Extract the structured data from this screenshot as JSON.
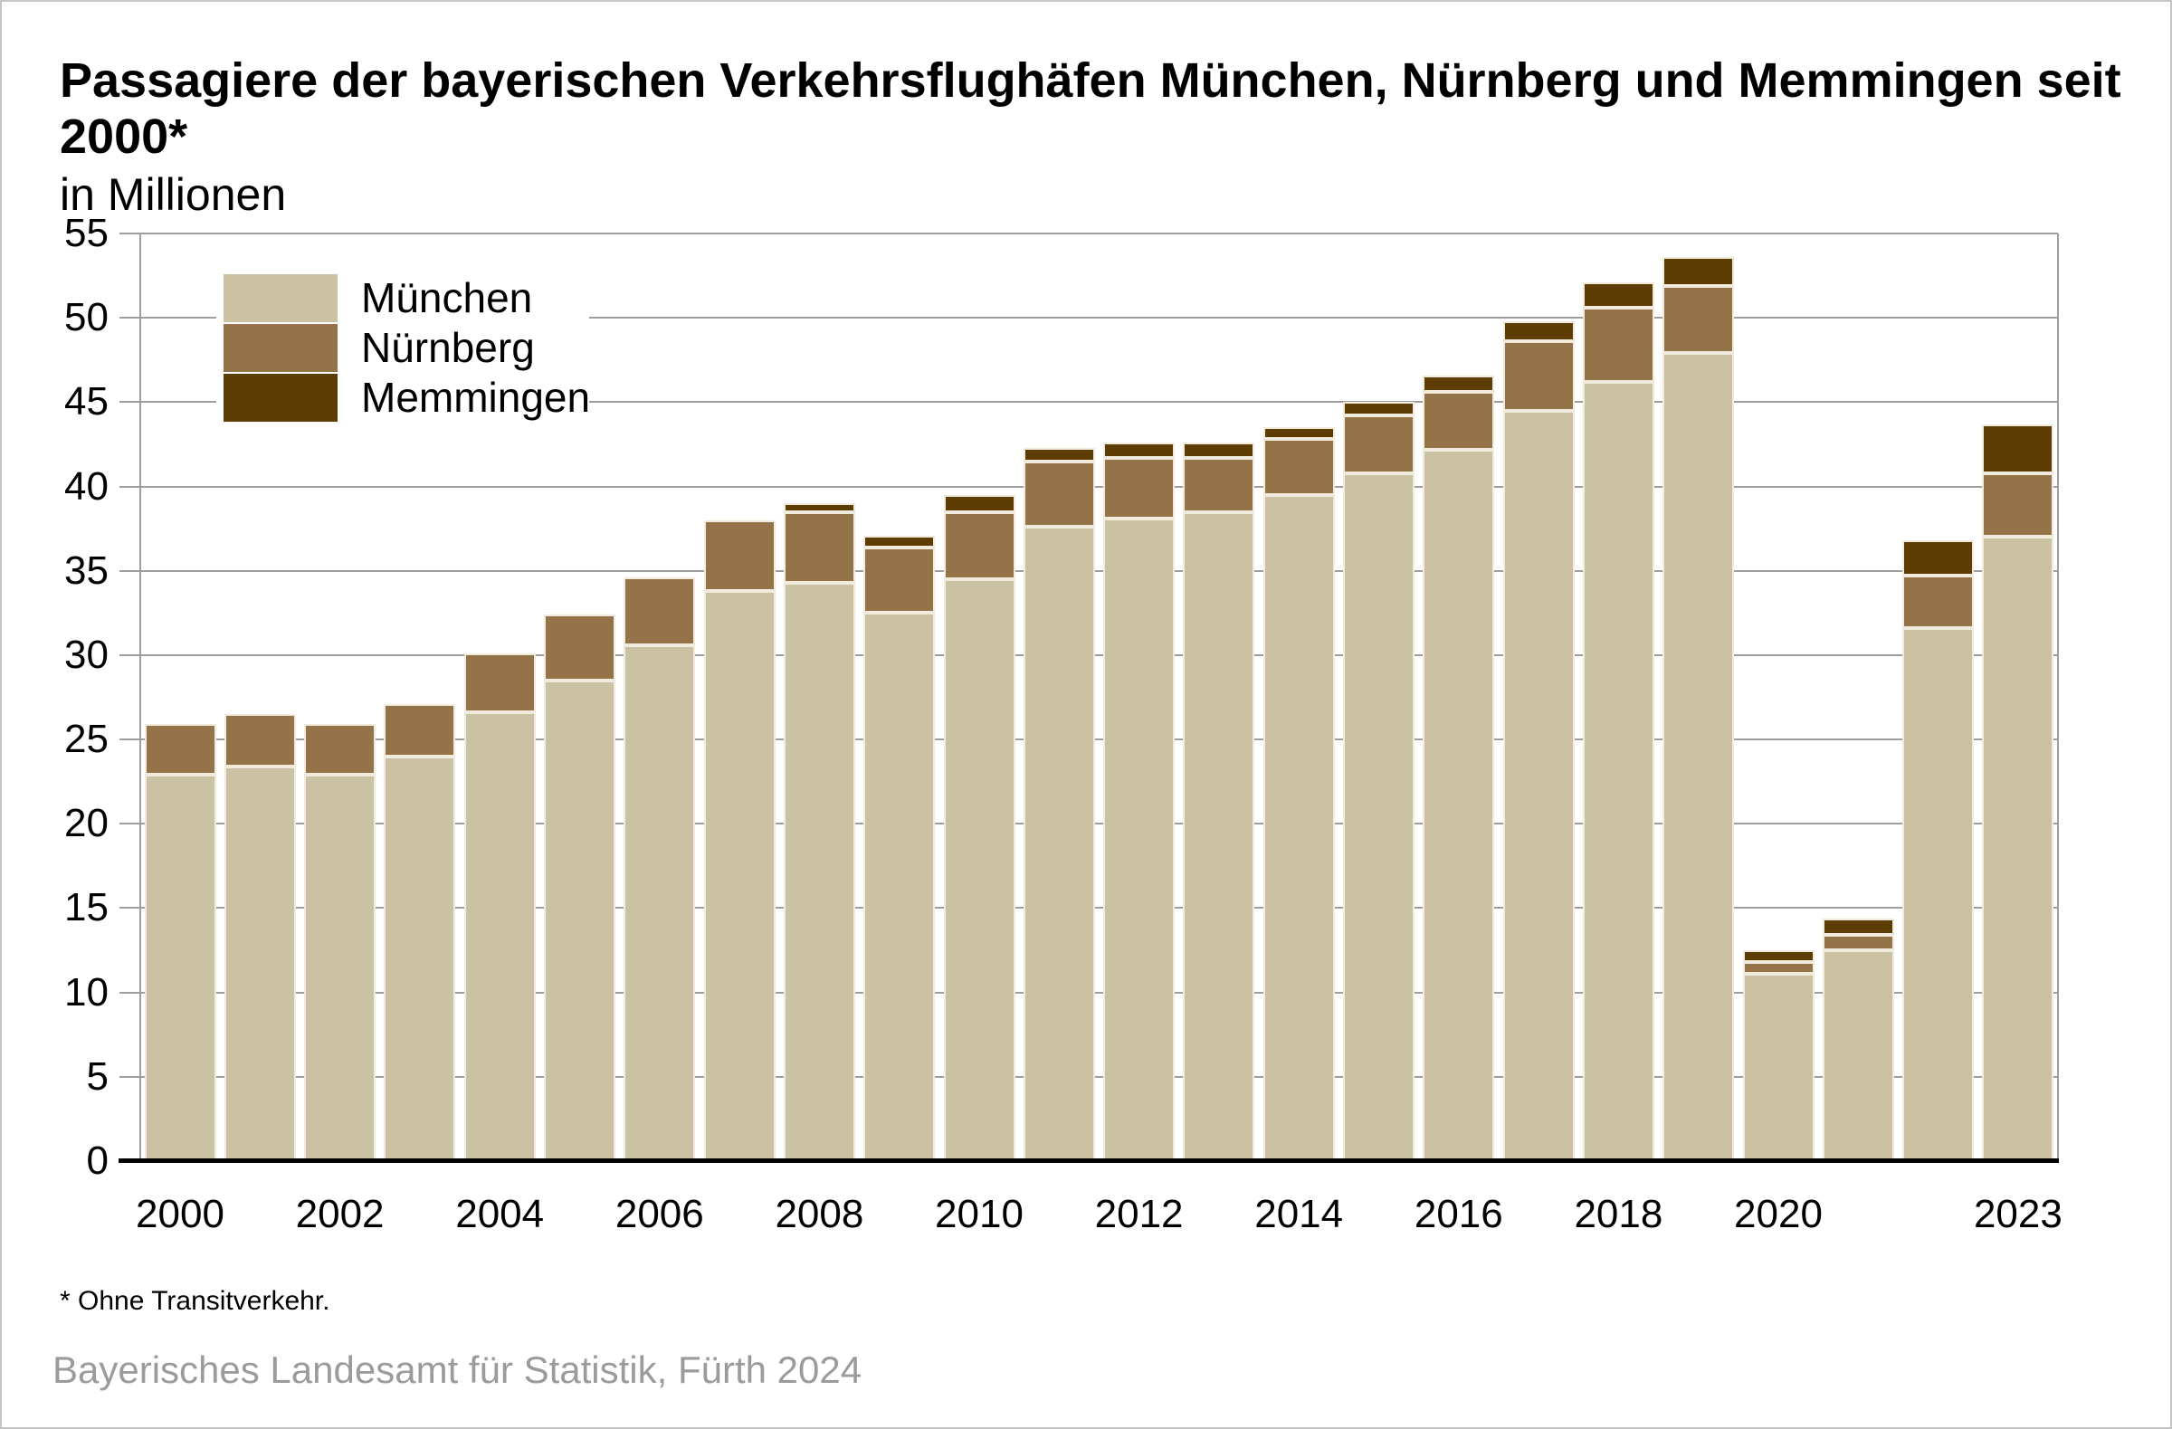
{
  "title": "Passagiere der bayerischen Verkehrsflughäfen München, Nürnberg und Memmingen seit 2000*",
  "subtitle": "in Millionen",
  "footnote": "* Ohne Transitverkehr.",
  "source": "Bayerisches Landesamt für Statistik, Fürth 2024",
  "colors": {
    "muenchen": "#cbc2a4",
    "nuernberg": "#947349",
    "memmingen": "#5e3d04",
    "segment_border": "#f1ebdd",
    "gridline": "#9e9e9e",
    "axis_line": "#000000",
    "source_text": "#9b9b9b"
  },
  "chart_data": {
    "type": "bar",
    "stacked": true,
    "title": "Passagiere der bayerischen Verkehrsflughäfen München, Nürnberg und Memmingen seit 2000*",
    "subtitle": "in Millionen",
    "xlabel": "",
    "ylabel": "in Millionen",
    "ylim": [
      0,
      55
    ],
    "ytick_step": 5,
    "grid": true,
    "legend_position": "upper-left",
    "legend_entries": [
      "München",
      "Nürnberg",
      "Memmingen"
    ],
    "categories": [
      2000,
      2001,
      2002,
      2003,
      2004,
      2005,
      2006,
      2007,
      2008,
      2009,
      2010,
      2011,
      2012,
      2013,
      2014,
      2015,
      2016,
      2017,
      2018,
      2019,
      2020,
      2021,
      2022,
      2023
    ],
    "xtick_labels": [
      "2000",
      "2002",
      "2004",
      "2006",
      "2008",
      "2010",
      "2012",
      "2014",
      "2016",
      "2018",
      "2020",
      "2023"
    ],
    "xtick_indices": [
      0,
      2,
      4,
      6,
      8,
      10,
      12,
      14,
      16,
      18,
      20,
      23
    ],
    "series": [
      {
        "name": "München",
        "color": "#cbc2a4",
        "values": [
          22.9,
          23.4,
          22.9,
          24.0,
          26.6,
          28.5,
          30.6,
          33.8,
          34.3,
          32.5,
          34.5,
          37.6,
          38.1,
          38.5,
          39.5,
          40.8,
          42.2,
          44.5,
          46.2,
          47.9,
          11.1,
          12.5,
          31.6,
          37.0
        ]
      },
      {
        "name": "Nürnberg",
        "color": "#947349",
        "values": [
          3.0,
          3.1,
          3.0,
          3.1,
          3.5,
          3.9,
          4.0,
          4.2,
          4.2,
          3.9,
          4.0,
          3.9,
          3.6,
          3.2,
          3.3,
          3.4,
          3.4,
          4.1,
          4.4,
          4.0,
          0.7,
          0.9,
          3.1,
          3.8
        ]
      },
      {
        "name": "Memmingen",
        "color": "#5e3d04",
        "values": [
          0,
          0,
          0,
          0,
          0,
          0,
          0,
          0,
          0.5,
          0.7,
          1.0,
          0.8,
          0.9,
          0.9,
          0.7,
          0.8,
          1.0,
          1.2,
          1.5,
          1.7,
          0.7,
          1.0,
          2.1,
          2.9
        ]
      }
    ],
    "totals": [
      25.9,
      26.5,
      25.9,
      27.1,
      30.1,
      32.4,
      34.6,
      38.0,
      39.0,
      37.1,
      39.5,
      42.3,
      42.6,
      42.6,
      43.5,
      45.0,
      46.6,
      49.8,
      52.1,
      53.6,
      12.5,
      14.4,
      36.8,
      43.7
    ]
  }
}
